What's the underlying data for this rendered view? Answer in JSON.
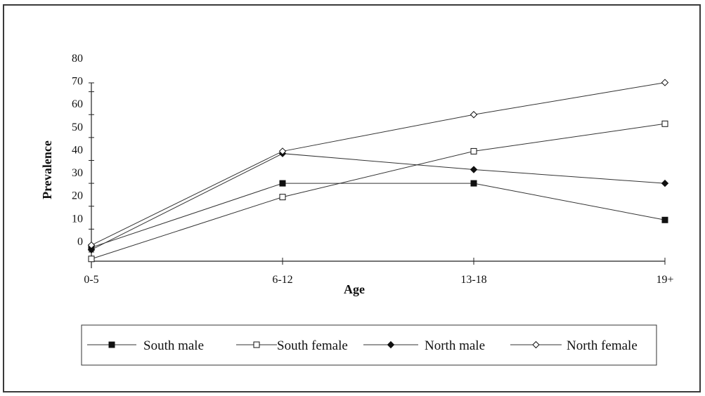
{
  "chart_data": {
    "type": "line",
    "categories": [
      "0-5",
      "6-12",
      "13-18",
      "19+"
    ],
    "xlabel": "Age",
    "ylabel": "Prevalence",
    "yticks": [
      0,
      10,
      20,
      30,
      40,
      50,
      60,
      70,
      80
    ],
    "ylim": [
      -4,
      80
    ],
    "grid": false,
    "legend_position": "bottom",
    "series": [
      {
        "name": "South male",
        "marker": "square-filled",
        "values": [
          2,
          30,
          30,
          14
        ]
      },
      {
        "name": "South female",
        "marker": "square-open",
        "values": [
          -3,
          24,
          44,
          56
        ]
      },
      {
        "name": "North male",
        "marker": "diamond-filled",
        "values": [
          1,
          43,
          36,
          30
        ]
      },
      {
        "name": "North female",
        "marker": "diamond-open",
        "values": [
          3,
          44,
          60,
          74
        ]
      }
    ]
  }
}
